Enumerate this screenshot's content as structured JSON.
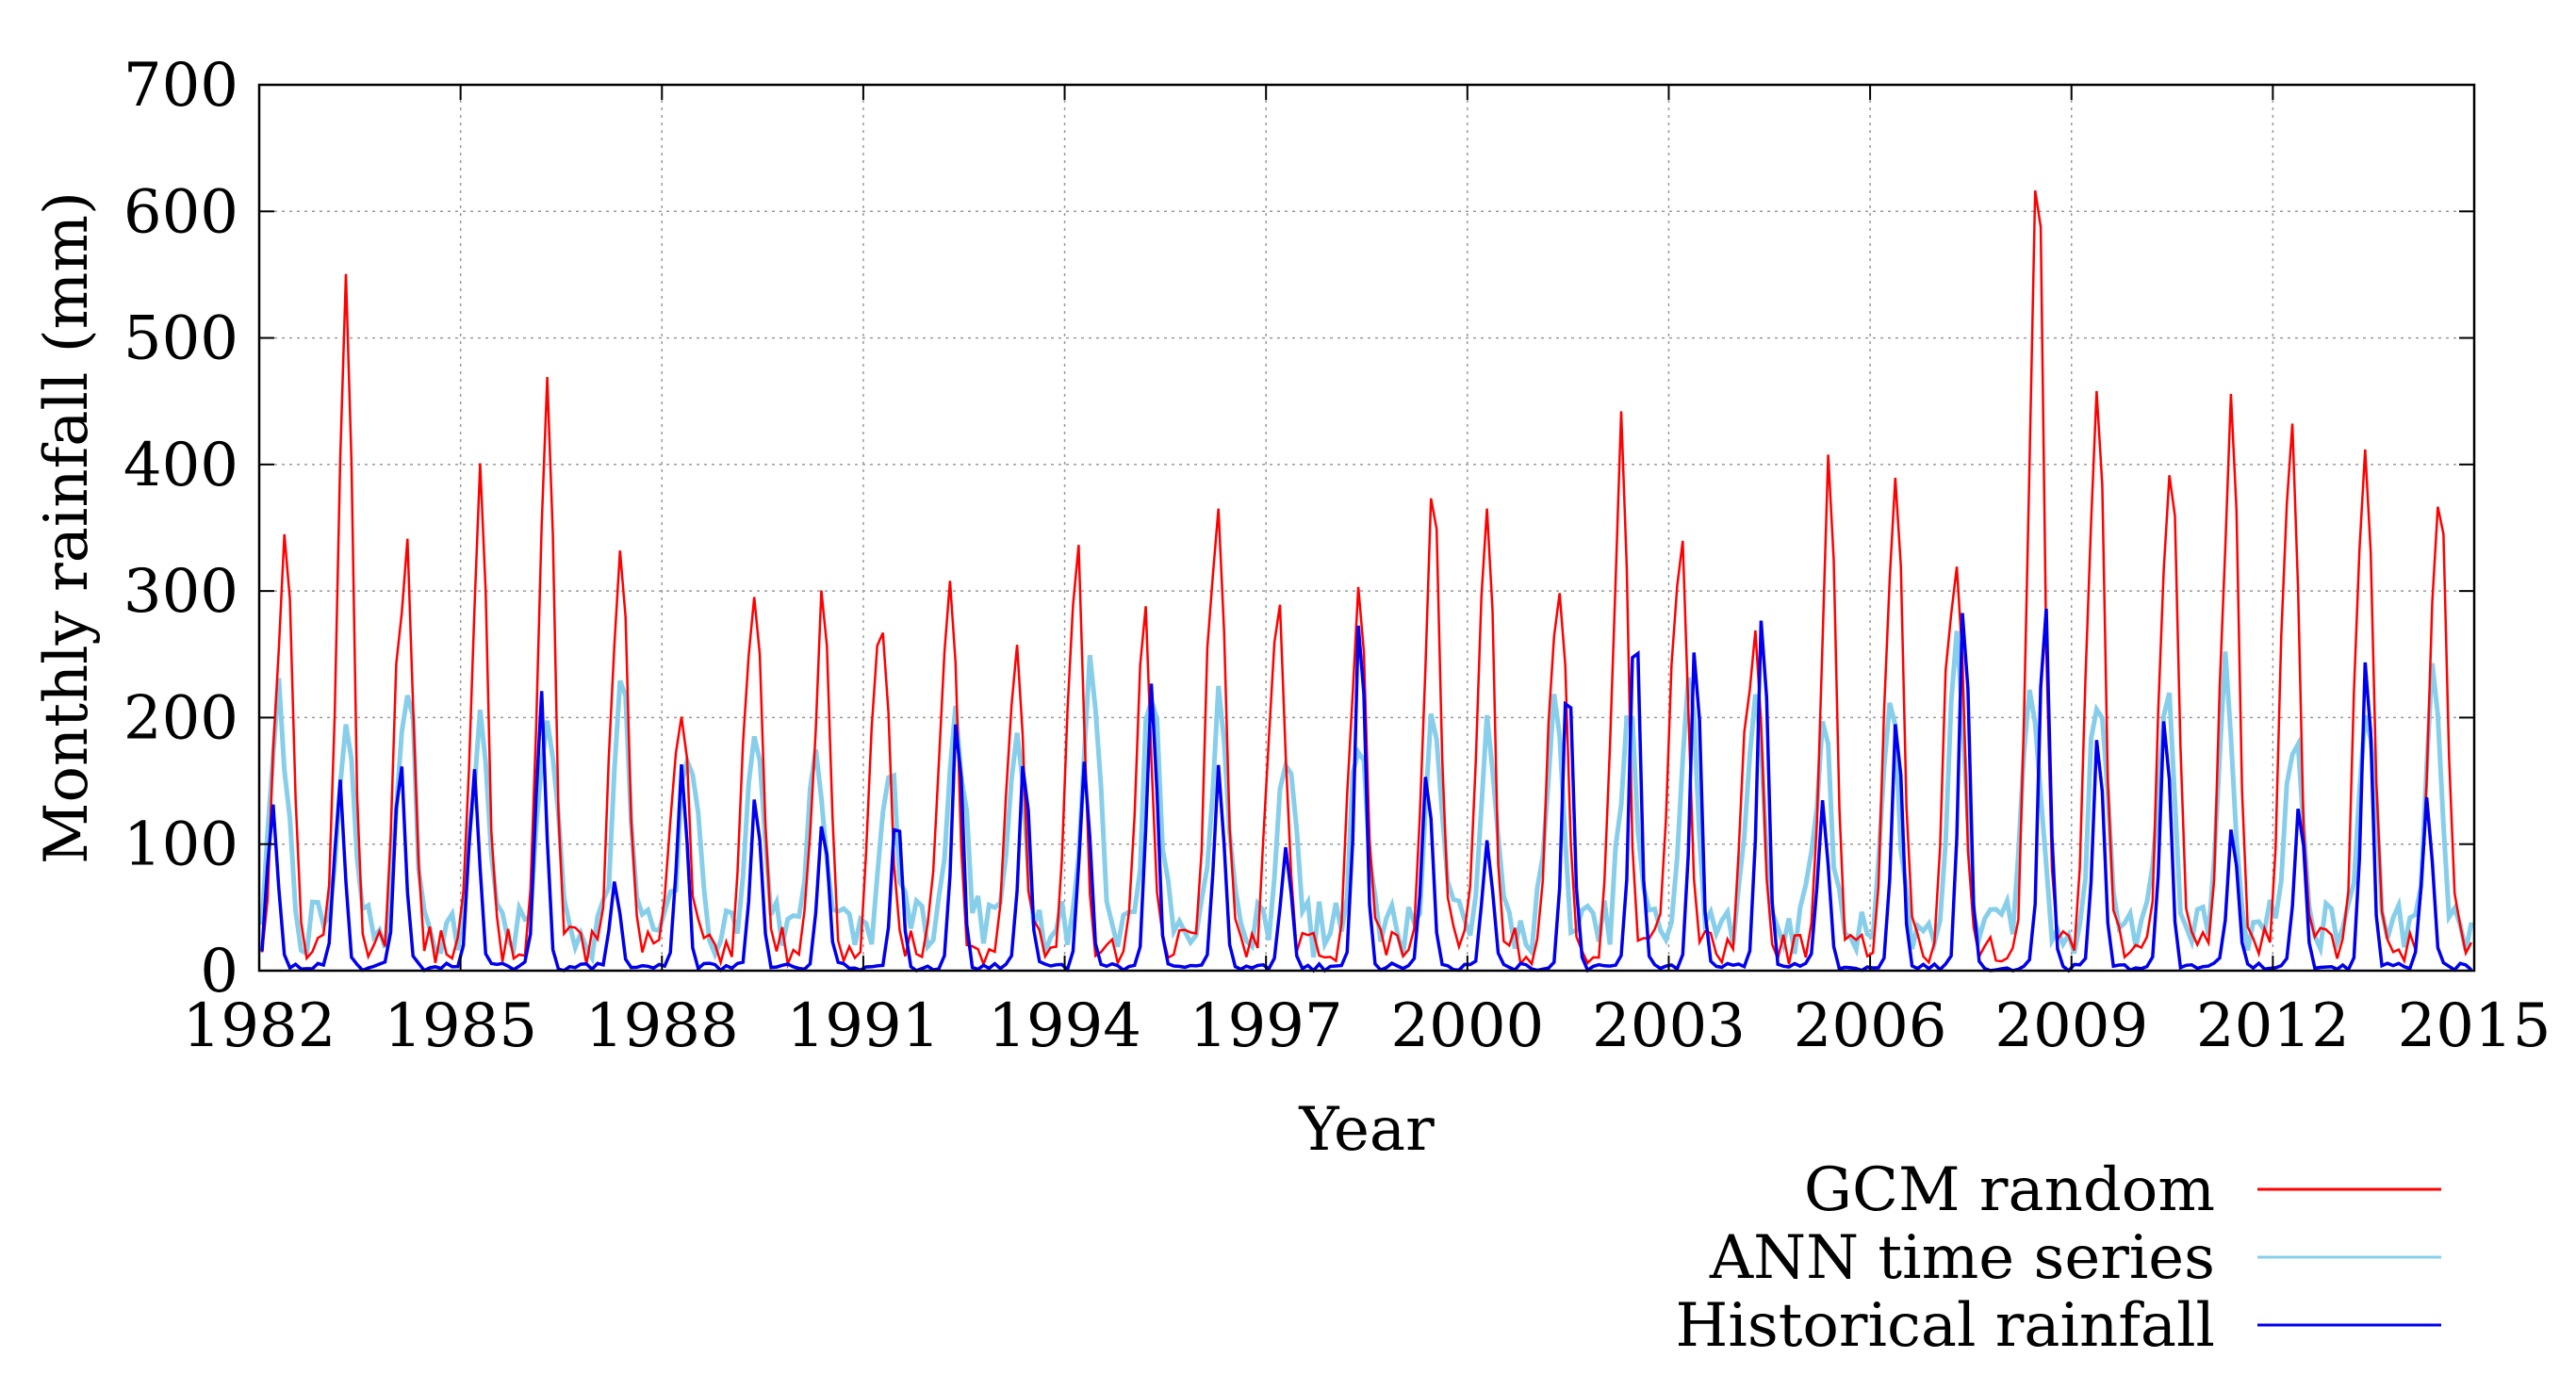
{
  "chart_data": {
    "type": "line",
    "title": "",
    "xlabel": "Year",
    "ylabel": "Monthly rainfall (mm)",
    "xlim": [
      1982,
      2015
    ],
    "ylim": [
      0,
      700
    ],
    "xticks": [
      1982,
      1985,
      1988,
      1991,
      1994,
      1997,
      2000,
      2003,
      2006,
      2009,
      2012,
      2015
    ],
    "yticks": [
      0,
      100,
      200,
      300,
      400,
      500,
      600,
      700
    ],
    "grid": true,
    "legend_position": "bottom-right",
    "colors": {
      "gcm": "#ff0000",
      "ann": "#87ceeb",
      "hist": "#0000ee"
    },
    "series_note": "Monthly values Jan 1982 - Dec 2014 estimated from the figure; peaks annual (wet season).",
    "series": [
      {
        "name": "GCM random",
        "key": "gcm",
        "color": "#ff0000",
        "annual_peak_year": [
          1982.4,
          1983.3,
          1984.2,
          1985.3,
          1986.3,
          1987.4,
          1988.3,
          1989.4,
          1990.4,
          1991.3,
          1992.3,
          1993.3,
          1994.2,
          1995.2,
          1996.3,
          1997.2,
          1998.4,
          1999.5,
          2000.3,
          2001.4,
          2002.3,
          2003.2,
          2004.3,
          2005.4,
          2006.4,
          2007.3,
          2008.5,
          2009.4,
          2010.5,
          2011.4,
          2012.3,
          2013.4,
          2014.5
        ],
        "annual_peak_value": [
          340,
          525,
          310,
          380,
          450,
          305,
          185,
          285,
          290,
          255,
          295,
          230,
          300,
          265,
          350,
          260,
          280,
          360,
          350,
          275,
          410,
          325,
          245,
          385,
          355,
          300,
          620,
          450,
          385,
          420,
          410,
          385,
          375
        ],
        "secondary_peak_value": [
          210,
          190,
          280,
          120,
          200,
          240,
          100,
          270,
          100,
          245,
          170,
          150,
          200,
          100,
          300,
          215,
          170,
          160,
          180,
          260,
          160,
          270,
          240,
          110,
          290,
          280,
          300,
          300,
          330,
          320,
          340,
          320,
          250
        ]
      },
      {
        "name": "ANN time series",
        "key": "ann",
        "color": "#87ceeb",
        "annual_peak_year": [
          1982.3,
          1983.3,
          1984.2,
          1985.3,
          1986.3,
          1987.4,
          1988.4,
          1989.4,
          1990.3,
          1991.4,
          1992.4,
          1993.3,
          1994.4,
          1995.3,
          1996.3,
          1997.3,
          1998.4,
          1999.5,
          2000.3,
          2001.3,
          2002.4,
          2003.3,
          2004.3,
          2005.3,
          2006.3,
          2007.3,
          2008.4,
          2009.4,
          2010.4,
          2011.3,
          2012.3,
          2013.4,
          2014.4
        ],
        "annual_peak_value": [
          180,
          150,
          200,
          170,
          180,
          190,
          150,
          160,
          150,
          120,
          160,
          170,
          220,
          200,
          180,
          150,
          160,
          170,
          150,
          170,
          170,
          190,
          190,
          160,
          180,
          220,
          200,
          200,
          190,
          200,
          160,
          170,
          200
        ]
      },
      {
        "name": "Historical rainfall",
        "key": "hist",
        "color": "#0000ee",
        "annual_peak_year": [
          1982.2,
          1983.2,
          1984.1,
          1985.2,
          1986.2,
          1987.3,
          1988.3,
          1989.4,
          1990.4,
          1991.5,
          1992.4,
          1993.4,
          1994.3,
          1995.3,
          1996.3,
          1997.3,
          1998.4,
          1999.4,
          2000.3,
          2001.5,
          2002.5,
          2003.4,
          2004.4,
          2005.3,
          2006.4,
          2007.4,
          2008.6,
          2009.4,
          2010.4,
          2011.4,
          2012.4,
          2013.4,
          2014.3
        ],
        "annual_peak_value": [
          128,
          148,
          170,
          160,
          218,
          65,
          162,
          138,
          118,
          125,
          203,
          165,
          165,
          228,
          158,
          97,
          288,
          160,
          98,
          240,
          288,
          260,
          292,
          132,
          205,
          297,
          300,
          190,
          203,
          112,
          132,
          252,
          133
        ]
      }
    ]
  },
  "legend": {
    "entries": [
      {
        "label": "GCM random",
        "color": "#ff0000"
      },
      {
        "label": "ANN time series",
        "color": "#87ceeb"
      },
      {
        "label": "Historical rainfall",
        "color": "#0000ee"
      }
    ]
  }
}
